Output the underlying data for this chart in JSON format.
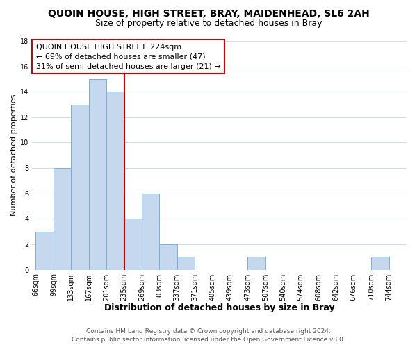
{
  "title": "QUOIN HOUSE, HIGH STREET, BRAY, MAIDENHEAD, SL6 2AH",
  "subtitle": "Size of property relative to detached houses in Bray",
  "xlabel": "Distribution of detached houses by size in Bray",
  "ylabel": "Number of detached properties",
  "bar_color": "#c5d8ed",
  "bar_edge_color": "#7bafd4",
  "bin_labels": [
    "66sqm",
    "99sqm",
    "133sqm",
    "167sqm",
    "201sqm",
    "235sqm",
    "269sqm",
    "303sqm",
    "337sqm",
    "371sqm",
    "405sqm",
    "439sqm",
    "473sqm",
    "507sqm",
    "540sqm",
    "574sqm",
    "608sqm",
    "642sqm",
    "676sqm",
    "710sqm",
    "744sqm"
  ],
  "bar_heights": [
    3,
    8,
    13,
    15,
    14,
    4,
    6,
    2,
    1,
    0,
    0,
    0,
    1,
    0,
    0,
    0,
    0,
    0,
    0,
    1,
    0
  ],
  "ylim": [
    0,
    18
  ],
  "yticks": [
    0,
    2,
    4,
    6,
    8,
    10,
    12,
    14,
    16,
    18
  ],
  "vline_x": 5.0,
  "vline_color": "#cc0000",
  "annotation_title": "QUOIN HOUSE HIGH STREET: 224sqm",
  "annotation_line1": "← 69% of detached houses are smaller (47)",
  "annotation_line2": "31% of semi-detached houses are larger (21) →",
  "annotation_box_facecolor": "#ffffff",
  "annotation_box_edgecolor": "#cc0000",
  "footer1": "Contains HM Land Registry data © Crown copyright and database right 2024.",
  "footer2": "Contains public sector information licensed under the Open Government Licence v3.0.",
  "fig_facecolor": "#ffffff",
  "ax_facecolor": "#ffffff",
  "grid_color": "#d0dce8",
  "title_fontsize": 10,
  "subtitle_fontsize": 9,
  "xlabel_fontsize": 9,
  "ylabel_fontsize": 8,
  "tick_fontsize": 7,
  "annotation_fontsize": 8,
  "footer_fontsize": 6.5
}
